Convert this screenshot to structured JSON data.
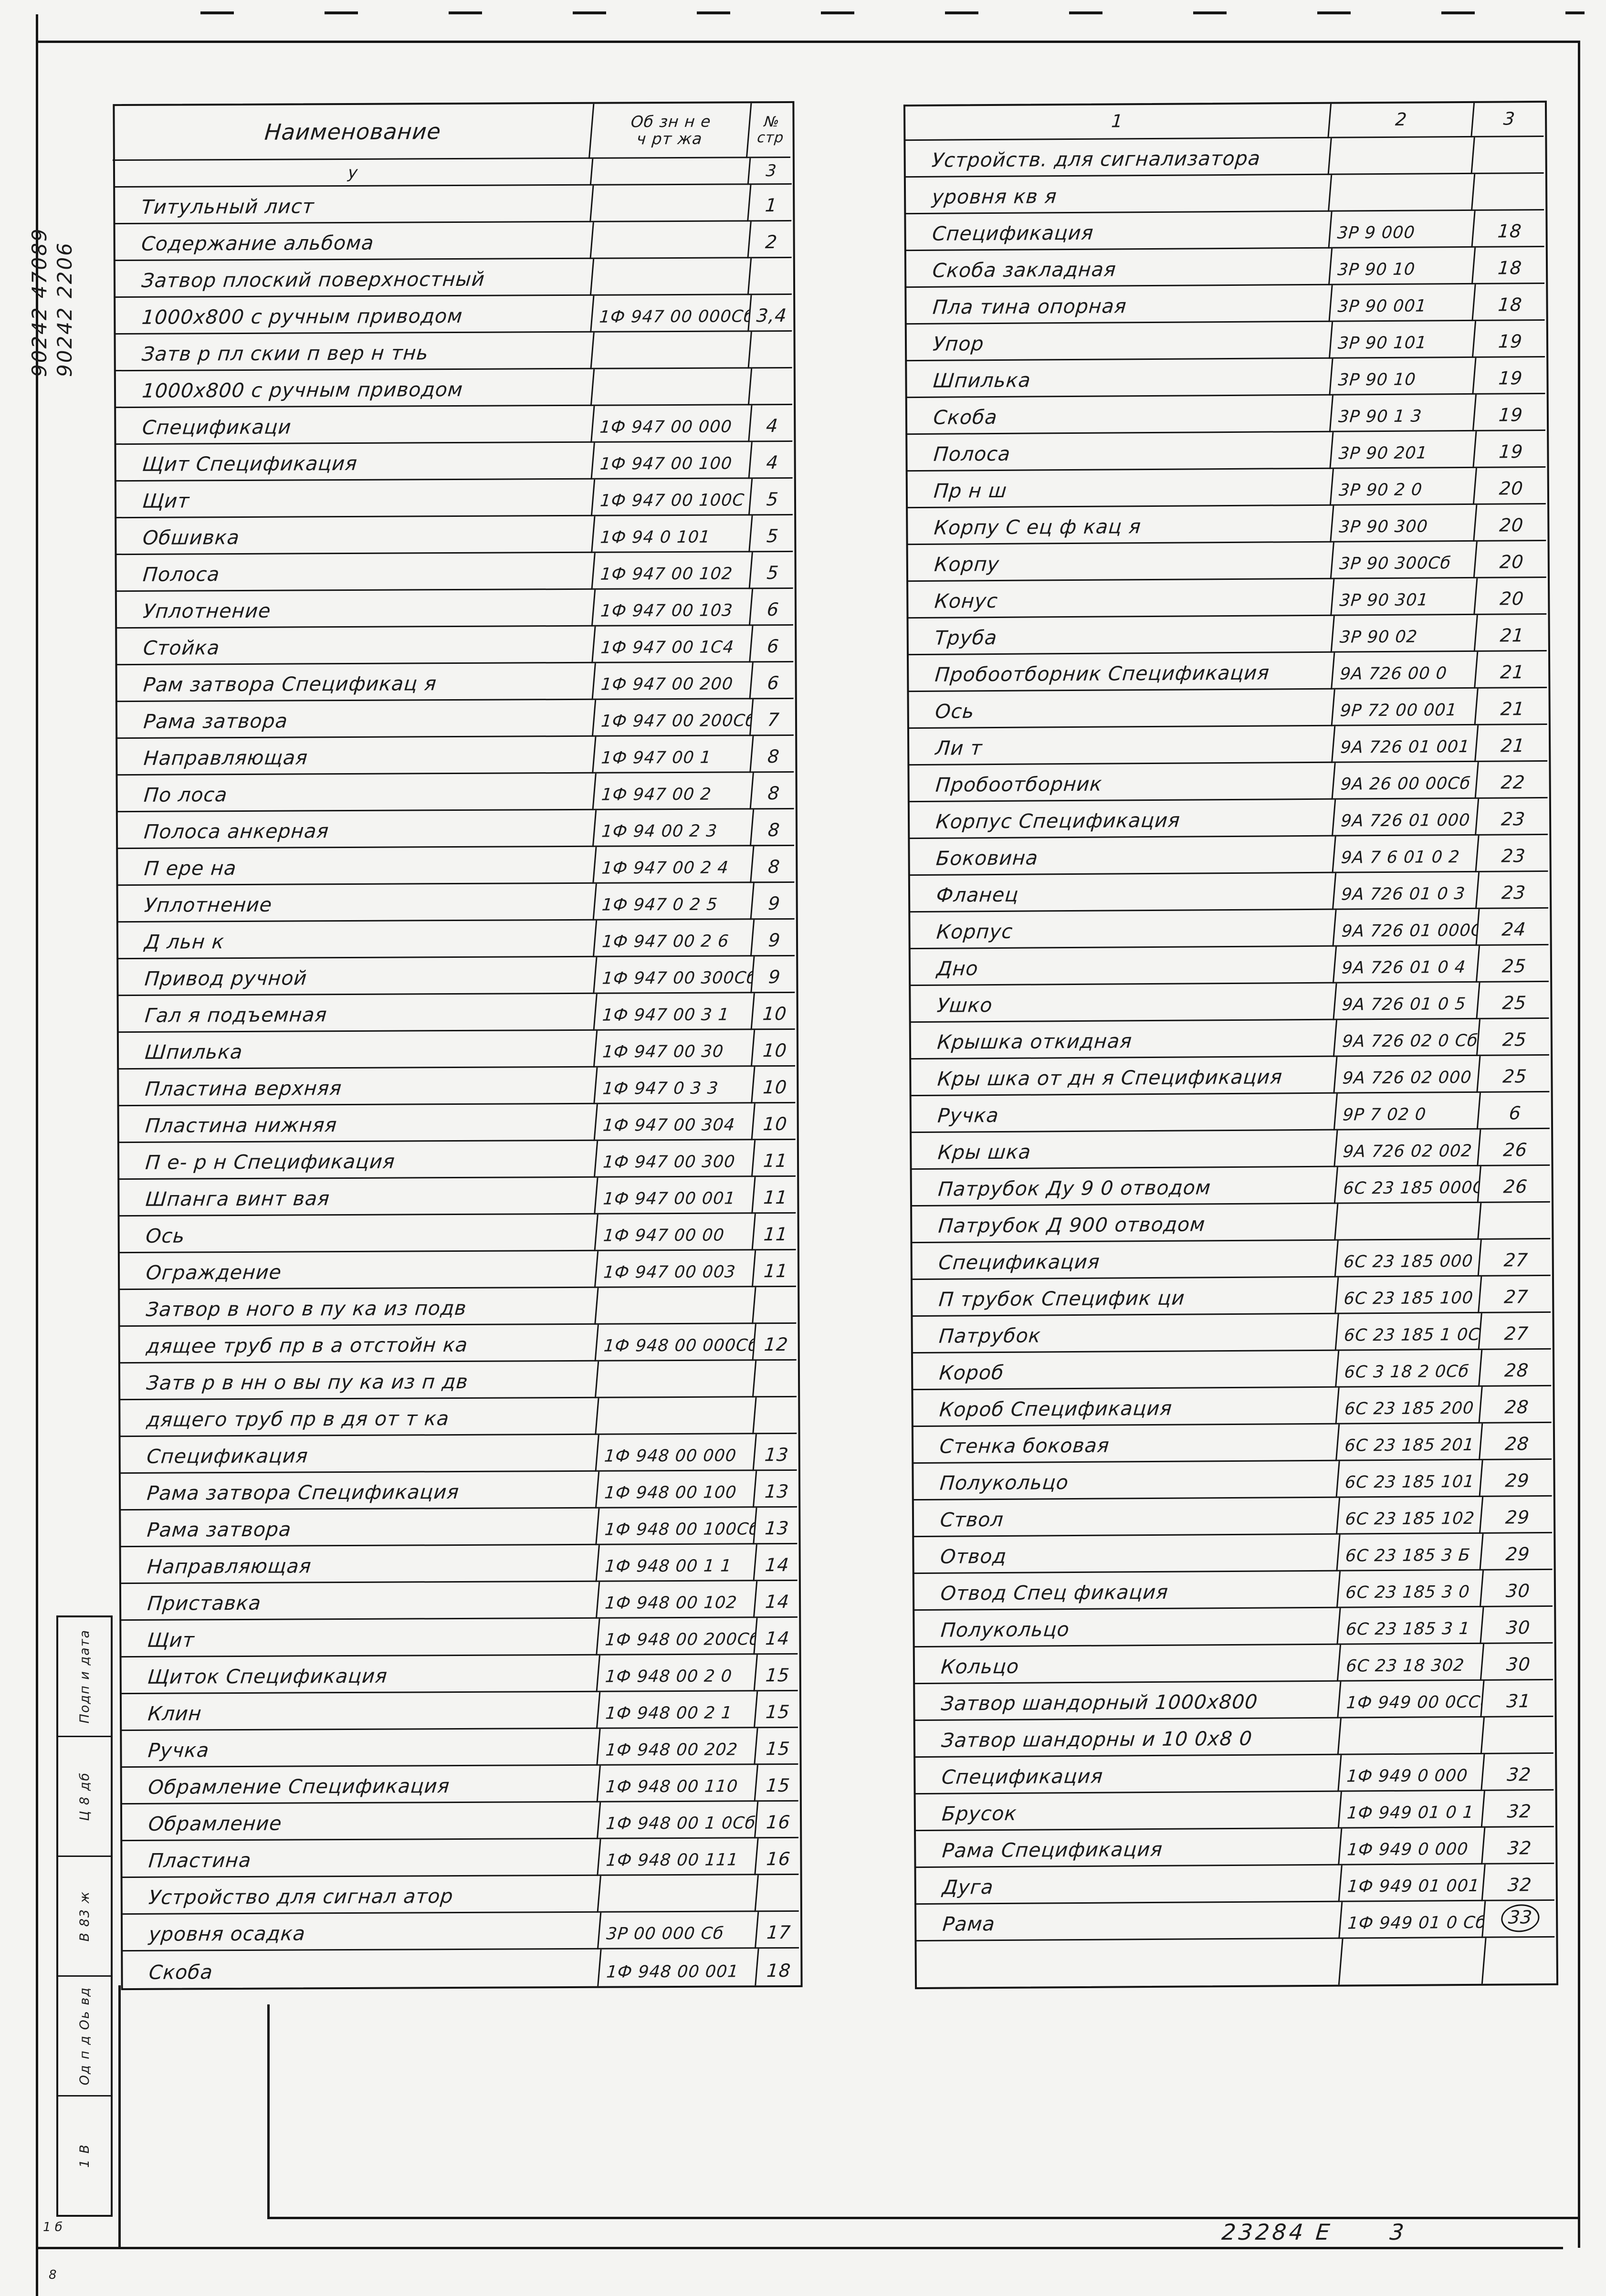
{
  "page": {
    "margin_note_line1": "90242 47089",
    "margin_note_line2": "90242 2206",
    "stamp_text": "23284 Е",
    "stamp_num": "3",
    "left_marks": [
      "1 б",
      "8"
    ]
  },
  "sidebar": {
    "labels": [
      "Подп и дата",
      "Ц 8 дб",
      "В 83 ж",
      "Од п д Оь вд",
      "1 В"
    ]
  },
  "left_table": {
    "headers": {
      "name": "Наименование",
      "code_line1": "Об зн   н е",
      "code_line2": "ч рт жа",
      "page_line1": "№",
      "page_line2": "стр"
    },
    "subheader": {
      "name": "у",
      "code": "",
      "page": "3"
    },
    "rows": [
      {
        "name": "Титульный лист",
        "code": "",
        "page": "1"
      },
      {
        "name": "Содержание альбома",
        "code": "",
        "page": "2"
      },
      {
        "name": "Затвор плоский поверхностный",
        "code": "",
        "page": ""
      },
      {
        "name": "1000х800 с ручным приводом",
        "code": "1Ф 947 00 000Сб",
        "page": "3,4"
      },
      {
        "name": "Затв р пл скии п вер н тнь",
        "code": "",
        "page": ""
      },
      {
        "name": "1000х800 с ручным приводом",
        "code": "",
        "page": ""
      },
      {
        "name": "Спецификаци",
        "code": "1Ф 947 00 000",
        "page": "4"
      },
      {
        "name": "Щит  Спецификация",
        "code": "1Ф 947 00 100",
        "page": "4"
      },
      {
        "name": "Щит",
        "code": "1Ф 947 00 100С",
        "page": "5"
      },
      {
        "name": "Обшивка",
        "code": "1Ф 94 0 101",
        "page": "5"
      },
      {
        "name": "Полоса",
        "code": "1Ф 947 00 102",
        "page": "5"
      },
      {
        "name": "Уплотнение",
        "code": "1Ф 947 00 103",
        "page": "6"
      },
      {
        "name": "Стойка",
        "code": "1Ф 947 00 1С4",
        "page": "6"
      },
      {
        "name": "Рам затвора  Спецификац я",
        "code": "1Ф 947 00 200",
        "page": "6"
      },
      {
        "name": "Рама затвора",
        "code": "1Ф 947 00 200Сб",
        "page": "7"
      },
      {
        "name": "Направляющая",
        "code": "1Ф 947 00 1",
        "page": "8"
      },
      {
        "name": "По лоса",
        "code": "1Ф 947 00 2",
        "page": "8"
      },
      {
        "name": "Полоса анкерная",
        "code": "1Ф 94 00 2 3",
        "page": "8"
      },
      {
        "name": "П ере на",
        "code": "1Ф 947 00 2 4",
        "page": "8"
      },
      {
        "name": "Уплотнение",
        "code": "1Ф 947 0 2 5",
        "page": "9"
      },
      {
        "name": "Д льн к",
        "code": "1Ф 947 00 2 6",
        "page": "9"
      },
      {
        "name": "Привод ручной",
        "code": "1Ф 947 00 300Сб",
        "page": "9"
      },
      {
        "name": "Гал я подъемная",
        "code": "1Ф 947 00 3 1",
        "page": "10"
      },
      {
        "name": "Шпилька",
        "code": "1Ф 947 00 30",
        "page": "10"
      },
      {
        "name": "Пластина верхняя",
        "code": "1Ф 947 0 3 3",
        "page": "10"
      },
      {
        "name": "Пластина нижняя",
        "code": "1Ф 947 00 304",
        "page": "10"
      },
      {
        "name": "П е- р н  Спецификация",
        "code": "1Ф 947 00 300",
        "page": "11"
      },
      {
        "name": "Шпанга винт вая",
        "code": "1Ф 947 00 001",
        "page": "11"
      },
      {
        "name": "Ось",
        "code": "1Ф 947 00 00",
        "page": "11"
      },
      {
        "name": "Ограждение",
        "code": "1Ф 947 00 003",
        "page": "11"
      },
      {
        "name": "Затвор в ного в пу ка из подв",
        "code": "",
        "page": ""
      },
      {
        "name": "дящее труб пр в а отстойн ка",
        "code": "1Ф 948 00 000Сб",
        "page": "12"
      },
      {
        "name": "Затв р в нн о вы пу ка из п дв",
        "code": "",
        "page": ""
      },
      {
        "name": "дящего труб пр в дя от т  ка",
        "code": "",
        "page": ""
      },
      {
        "name": "Спецификация",
        "code": "1Ф 948 00 000",
        "page": "13"
      },
      {
        "name": "Рама затвора  Спецификация",
        "code": "1Ф 948 00 100",
        "page": "13"
      },
      {
        "name": "Рама затвора",
        "code": "1Ф 948 00 100Сб",
        "page": "13"
      },
      {
        "name": "Направляющая",
        "code": "1Ф 948 00 1 1",
        "page": "14"
      },
      {
        "name": "Приставка",
        "code": "1Ф 948 00 102",
        "page": "14"
      },
      {
        "name": "Щит",
        "code": "1Ф 948 00 200Сб",
        "page": "14"
      },
      {
        "name": "Щиток  Спецификация",
        "code": "1Ф 948 00 2 0",
        "page": "15"
      },
      {
        "name": "Клин",
        "code": "1Ф 948 00 2 1",
        "page": "15"
      },
      {
        "name": "Ручка",
        "code": "1Ф 948 00 202",
        "page": "15"
      },
      {
        "name": "Обрамление  Спецификация",
        "code": "1Ф 948 00 110",
        "page": "15"
      },
      {
        "name": "Обрамление",
        "code": "1Ф 948 00 1 0Сб",
        "page": "16"
      },
      {
        "name": "Пластина",
        "code": "1Ф 948 00 111",
        "page": "16"
      },
      {
        "name": "Устройство для сигнал атор",
        "code": "",
        "page": ""
      },
      {
        "name": "уровня осадка",
        "code": "3Р 00 000 Сб",
        "page": "17"
      },
      {
        "name": "Скоба",
        "code": "1Ф 948 00 001",
        "page": "18"
      }
    ]
  },
  "right_table": {
    "headers": [
      "1",
      "2",
      "3"
    ],
    "rows": [
      {
        "name": "Устройств. для сигнализатора",
        "code": "",
        "page": ""
      },
      {
        "name": "уровня  кв я",
        "code": "",
        "page": ""
      },
      {
        "name": "Спецификация",
        "code": "3Р 9 000",
        "page": "18"
      },
      {
        "name": "Скоба закладная",
        "code": "3Р 90 10",
        "page": "18"
      },
      {
        "name": "Пла тина опорная",
        "code": "3Р 90 001",
        "page": "18"
      },
      {
        "name": "Упор",
        "code": "3Р 90 101",
        "page": "19"
      },
      {
        "name": "Шпилька",
        "code": "3Р 90 10",
        "page": "19"
      },
      {
        "name": "Скоба",
        "code": "3Р 90 1 3",
        "page": "19"
      },
      {
        "name": "Полоса",
        "code": "3Р 90 201",
        "page": "19"
      },
      {
        "name": "Пр н ш",
        "code": "3Р 90 2 0",
        "page": "20"
      },
      {
        "name": "Корпу  С ец ф кац я",
        "code": "3Р 90 300",
        "page": "20"
      },
      {
        "name": "Корпу",
        "code": "3Р 90 300Сб",
        "page": "20"
      },
      {
        "name": "Конус",
        "code": "3Р 90 301",
        "page": "20"
      },
      {
        "name": "Труба",
        "code": "3Р 90 02",
        "page": "21"
      },
      {
        "name": "Пробоотборник  Спецификация",
        "code": "9А 726 00 0",
        "page": "21"
      },
      {
        "name": "Ось",
        "code": "9Р 72 00 001",
        "page": "21"
      },
      {
        "name": "Ли т",
        "code": "9А 726 01 001",
        "page": "21"
      },
      {
        "name": "Пробоотборник",
        "code": "9А 26 00 00Сб",
        "page": "22"
      },
      {
        "name": "Корпус  Спецификация",
        "code": "9А 726 01 000",
        "page": "23"
      },
      {
        "name": "Боковина",
        "code": "9А 7 6 01 0 2",
        "page": "23"
      },
      {
        "name": "Фланец",
        "code": "9А 726 01 0 3",
        "page": "23"
      },
      {
        "name": "Корпус",
        "code": "9А 726 01 000Сб",
        "page": "24"
      },
      {
        "name": "Дно",
        "code": "9А 726 01 0 4",
        "page": "25"
      },
      {
        "name": "Ушко",
        "code": "9А 726 01 0 5",
        "page": "25"
      },
      {
        "name": "Крышка откидная",
        "code": "9А 726 02 0 Сб",
        "page": "25"
      },
      {
        "name": "Кры шка от дн я Спецификация",
        "code": "9А 726 02 000",
        "page": "25"
      },
      {
        "name": "Ручка",
        "code": "9Р 7 02 0",
        "page": "6"
      },
      {
        "name": "Кры шка",
        "code": "9А 726 02 002",
        "page": "26"
      },
      {
        "name": "Патрубок Ду 9 0   отводом",
        "code": "6С 23 185 000Сб",
        "page": "26"
      },
      {
        "name": "Патрубок Д 900  отводом",
        "code": "",
        "page": ""
      },
      {
        "name": "Спецификация",
        "code": "6С 23 185 000",
        "page": "27"
      },
      {
        "name": "П трубок  Специфик ци",
        "code": "6С 23 185 100",
        "page": "27"
      },
      {
        "name": "Патрубок",
        "code": "6С 23 185 1 0Сб",
        "page": "27"
      },
      {
        "name": "Короб",
        "code": "6С 3 18 2 0Сб",
        "page": "28"
      },
      {
        "name": "Короб  Спецификация",
        "code": "6С 23 185 200",
        "page": "28"
      },
      {
        "name": "Стенка боковая",
        "code": "6С 23 185 201",
        "page": "28"
      },
      {
        "name": "Полукольцо",
        "code": "6С 23 185 101",
        "page": "29"
      },
      {
        "name": "Ствол",
        "code": "6С 23 185 102",
        "page": "29"
      },
      {
        "name": "Отвод",
        "code": "6С 23 185 3 Б",
        "page": "29"
      },
      {
        "name": "Отвод  Спец фикация",
        "code": "6С 23 185 3 0",
        "page": "30"
      },
      {
        "name": "Полукольцо",
        "code": "6С 23 185 3 1",
        "page": "30"
      },
      {
        "name": "Кольцо",
        "code": "6С 23 18 302",
        "page": "30"
      },
      {
        "name": "Затвор шандорный 1000х800",
        "code": "1Ф 949 00 0ССб",
        "page": "31"
      },
      {
        "name": "Затвор шандорны и 10 0х8 0",
        "code": "",
        "page": ""
      },
      {
        "name": "Спецификация",
        "code": "1Ф 949 0 000",
        "page": "32"
      },
      {
        "name": "Брусок",
        "code": "1Ф 949 01 0 1",
        "page": "32"
      },
      {
        "name": "Рама  Спецификация",
        "code": "1Ф 949 0 000",
        "page": "32"
      },
      {
        "name": "Дуга",
        "code": "1Ф 949 01 001",
        "page": "32"
      },
      {
        "name": "Рама",
        "code": "1Ф 949 01 0 Сб",
        "page": "33",
        "circled": true
      },
      {
        "name": "",
        "code": "",
        "page": "",
        "last": true
      }
    ]
  }
}
